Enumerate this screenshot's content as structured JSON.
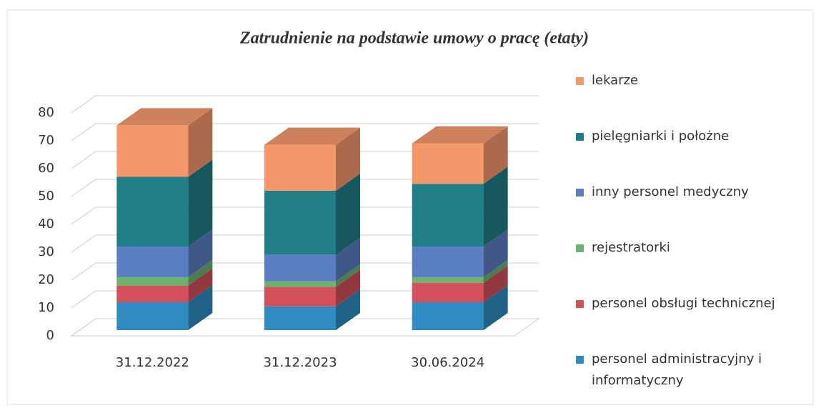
{
  "chart_data": {
    "type": "bar3d_stacked",
    "title": "Zatrudnienie na podstawie umowy o pracę (etaty)",
    "categories": [
      "31.12.2022",
      "31.12.2023",
      "30.06.2024"
    ],
    "series": [
      {
        "name": "personel administracyjny i informatyczny",
        "color": "#2e8cc0",
        "values": [
          10,
          8.5,
          10
        ]
      },
      {
        "name": "personel obsługi technicznej",
        "color": "#d4505c",
        "values": [
          6,
          7,
          7
        ]
      },
      {
        "name": "rejestratorki",
        "color": "#6cb36c",
        "values": [
          3,
          2,
          2
        ]
      },
      {
        "name": "inny personel medyczny",
        "color": "#5a7ec2",
        "values": [
          11,
          9.5,
          11
        ]
      },
      {
        "name": "pielęgniarki i położne",
        "color": "#1f7e86",
        "values": [
          25,
          23,
          22.5
        ]
      },
      {
        "name": "lekarze",
        "color": "#f4986c",
        "values": [
          18.5,
          16.5,
          14.5
        ]
      }
    ],
    "ylim": [
      0,
      80
    ],
    "yticks": [
      0,
      10,
      20,
      30,
      40,
      50,
      60,
      70,
      80
    ],
    "grid": true,
    "legend": "right"
  }
}
